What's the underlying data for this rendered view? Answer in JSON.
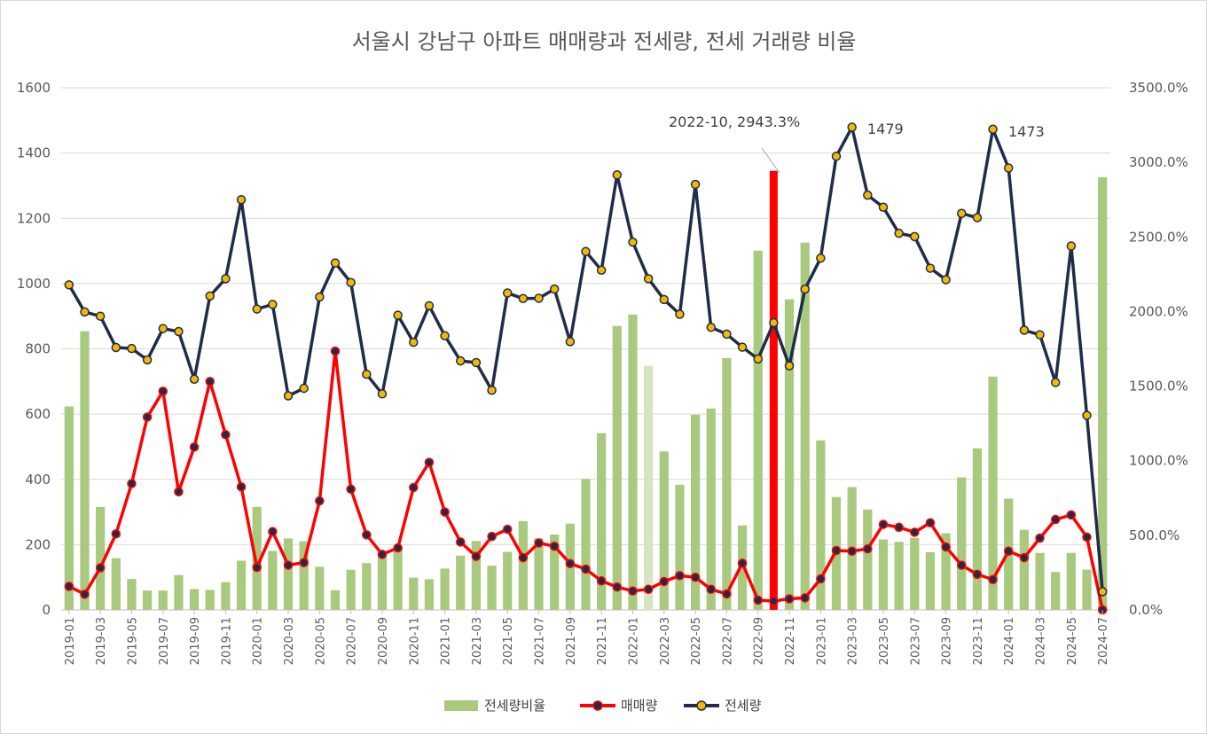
{
  "chart_data": {
    "type": "bar+line",
    "title": "서울시 강남구 아파트 매매량과 전세량, 전세 거래량 비율",
    "left_axis": {
      "range": [
        0,
        1600
      ],
      "ticks": [
        "0",
        "200",
        "400",
        "600",
        "800",
        "1000",
        "1200",
        "1400",
        "1600"
      ]
    },
    "right_axis": {
      "range": [
        0,
        3500
      ],
      "ticks": [
        "0.0%",
        "500.0%",
        "1000.0%",
        "1500.0%",
        "2000.0%",
        "2500.0%",
        "3000.0%",
        "3500.0%"
      ]
    },
    "x": [
      "2019-01",
      "2019-02",
      "2019-03",
      "2019-04",
      "2019-05",
      "2019-06",
      "2019-07",
      "2019-08",
      "2019-09",
      "2019-10",
      "2019-11",
      "2019-12",
      "2020-01",
      "2020-02",
      "2020-03",
      "2020-04",
      "2020-05",
      "2020-06",
      "2020-07",
      "2020-08",
      "2020-09",
      "2020-10",
      "2020-11",
      "2020-12",
      "2021-01",
      "2021-02",
      "2021-03",
      "2021-04",
      "2021-05",
      "2021-06",
      "2021-07",
      "2021-08",
      "2021-09",
      "2021-10",
      "2021-11",
      "2021-12",
      "2022-01",
      "2022-02",
      "2022-03",
      "2022-04",
      "2022-05",
      "2022-06",
      "2022-07",
      "2022-08",
      "2022-09",
      "2022-10",
      "2022-11",
      "2022-12",
      "2023-01",
      "2023-02",
      "2023-03",
      "2023-04",
      "2023-05",
      "2023-06",
      "2023-07",
      "2023-08",
      "2023-09",
      "2023-10",
      "2023-11",
      "2023-12",
      "2024-01",
      "2024-02",
      "2024-03",
      "2024-04",
      "2024-05",
      "2024-06",
      "2024-07"
    ],
    "x_tick_labels": [
      "2019-01",
      "2019-03",
      "2019-05",
      "2019-07",
      "2019-09",
      "2019-11",
      "2020-01",
      "2020-03",
      "2020-05",
      "2020-07",
      "2020-09",
      "2020-11",
      "2021-01",
      "2021-03",
      "2021-05",
      "2021-07",
      "2021-09",
      "2021-11",
      "2022-01",
      "2022-03",
      "2022-05",
      "2022-07",
      "2022-09",
      "2022-11",
      "2023-01",
      "2023-03",
      "2023-05",
      "2023-07",
      "2023-09",
      "2023-11",
      "2024-01",
      "2024-03",
      "2024-05",
      "2024-07"
    ],
    "series": [
      {
        "name": "전세량비율",
        "type": "bar",
        "axis": "right",
        "color": "#a9c97f",
        "values": [
          1364,
          1868,
          690,
          347,
          207,
          130,
          130,
          233,
          140,
          134,
          186,
          330,
          690,
          395,
          479,
          460,
          289,
          132,
          269,
          314,
          380,
          419,
          216,
          206,
          277,
          364,
          462,
          296,
          389,
          595,
          480,
          505,
          578,
          878,
          1185,
          1903,
          1980,
          1636,
          1062,
          839,
          1308,
          1350,
          1688,
          566,
          2408,
          2943,
          2082,
          2462,
          1136,
          757,
          823,
          673,
          472,
          456,
          483,
          387,
          514,
          888,
          1083,
          1564,
          746,
          537,
          382,
          254,
          382,
          270,
          2900
        ],
        "highlight_index": 37,
        "highlight_color": "#d6e4bf"
      },
      {
        "name": "매매량",
        "type": "line",
        "axis": "left",
        "color": "#ff0000",
        "marker_fill": "#1f2d4a",
        "values": [
          72,
          48,
          129,
          233,
          387,
          591,
          670,
          362,
          499,
          700,
          537,
          377,
          130,
          240,
          137,
          145,
          334,
          793,
          370,
          230,
          170,
          190,
          375,
          452,
          300,
          208,
          164,
          225,
          247,
          160,
          205,
          195,
          142,
          125,
          89,
          70,
          58,
          63,
          87,
          105,
          100,
          63,
          49,
          143,
          30,
          27,
          34,
          37,
          95,
          182,
          180,
          187,
          262,
          253,
          238,
          267,
          193,
          137,
          109,
          93,
          180,
          160,
          220,
          277,
          291,
          223,
          0
        ]
      },
      {
        "name": "전세량",
        "type": "line",
        "axis": "left",
        "color": "#1f2d4a",
        "marker_fill": "#f5b800",
        "values": [
          996,
          913,
          900,
          804,
          801,
          766,
          862,
          853,
          707,
          962,
          1015,
          1257,
          922,
          936,
          656,
          679,
          959,
          1063,
          1003,
          722,
          662,
          903,
          820,
          932,
          840,
          763,
          758,
          673,
          971,
          954,
          955,
          983,
          822,
          1098,
          1041,
          1333,
          1127,
          1015,
          951,
          906,
          1304,
          866,
          845,
          805,
          769,
          880,
          748,
          983,
          1078,
          1390,
          1479,
          1271,
          1234,
          1154,
          1144,
          1047,
          1012,
          1215,
          1202,
          1473,
          1354,
          857,
          843,
          697,
          1115,
          596,
          56
        ]
      }
    ],
    "annotations": {
      "callout": "2022-10, 2943.3%",
      "peak1": "1479",
      "peak2": "1473"
    },
    "legend": {
      "position": "bottom",
      "items": [
        "전세량비율",
        "매매량",
        "전세량"
      ]
    },
    "grid": "horizontal"
  }
}
